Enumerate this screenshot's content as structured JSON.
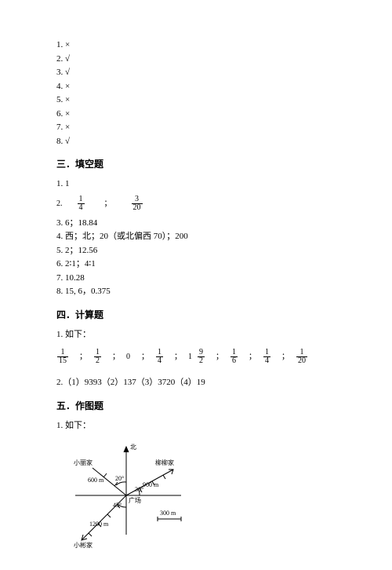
{
  "judgement": {
    "items": [
      {
        "num": "1.",
        "mark": "×"
      },
      {
        "num": "2.",
        "mark": "√"
      },
      {
        "num": "3.",
        "mark": "√"
      },
      {
        "num": "4.",
        "mark": "×"
      },
      {
        "num": "5.",
        "mark": "×"
      },
      {
        "num": "6.",
        "mark": "×"
      },
      {
        "num": "7.",
        "mark": "×"
      },
      {
        "num": "8.",
        "mark": "√"
      }
    ]
  },
  "section3": {
    "title": "三．填空题",
    "q1": "1. 1",
    "q2": {
      "prefix": "2.",
      "frac1": {
        "n": "1",
        "d": "4"
      },
      "sep": "；",
      "frac2": {
        "n": "3",
        "d": "20"
      }
    },
    "q3": "3. 6；18.84",
    "q4": "4. 西；北；20（或北偏西 70）；200",
    "q5": "5. 2；12.56",
    "q6": "6. 2∶1；4∶1",
    "q7": "7. 10.28",
    "q8": "8. 15, 6，0.375"
  },
  "section4": {
    "title": "四．计算题",
    "q1": "1. 如下：",
    "row": [
      {
        "type": "frac",
        "n": "1",
        "d": "15"
      },
      {
        "type": "sep",
        "v": "；"
      },
      {
        "type": "frac",
        "n": "1",
        "d": "2"
      },
      {
        "type": "sep",
        "v": "；"
      },
      {
        "type": "text",
        "v": "0"
      },
      {
        "type": "sep",
        "v": "；"
      },
      {
        "type": "frac",
        "n": "1",
        "d": "4"
      },
      {
        "type": "sep",
        "v": "；"
      },
      {
        "type": "text",
        "v": "1"
      },
      {
        "type": "frac",
        "n": "9",
        "d": "2"
      },
      {
        "type": "sep",
        "v": "；"
      },
      {
        "type": "frac",
        "n": "1",
        "d": "6"
      },
      {
        "type": "sep",
        "v": "；"
      },
      {
        "type": "frac",
        "n": "1",
        "d": "4"
      },
      {
        "type": "sep",
        "v": "；"
      },
      {
        "type": "frac",
        "n": "1",
        "d": "20"
      }
    ],
    "q2": "2.（1）9393（2）137（3）3720（4）19"
  },
  "section5": {
    "title": "五．作图题",
    "q1": "1. 如下：",
    "diagram": {
      "labels": {
        "north": "北",
        "home1": "小丽家",
        "home2": "柳柳家",
        "home3": "小彬家",
        "center": "广场",
        "d600": "600 m",
        "d900": "900 m",
        "d1200": "1200 m",
        "scale": "300 m",
        "a20": "20°",
        "a30": "30°",
        "a45": "45°"
      },
      "colors": {
        "stroke": "#000000",
        "bg": "#ffffff"
      }
    }
  }
}
